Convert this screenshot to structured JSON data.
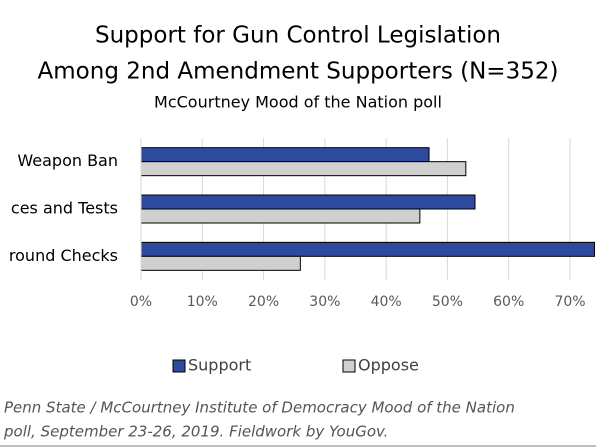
{
  "chart_data": {
    "type": "hbar",
    "title": [
      "Support for Gun Control Legislation",
      "Among 2nd Amendment Supporters (N=352)"
    ],
    "subtitle": "McCourtney Mood of the Nation poll",
    "categories": [
      "Weapon Ban",
      "ces and Tests",
      "round Checks"
    ],
    "series": [
      {
        "name": "Support",
        "color": "#2e4a9e",
        "values": [
          47,
          54.5,
          74
        ]
      },
      {
        "name": "Oppose",
        "color": "#d0d0d0",
        "values": [
          53,
          45.5,
          26
        ]
      }
    ],
    "xlim": [
      0,
      70
    ],
    "xticks": [
      {
        "value": 0,
        "label": "0%"
      },
      {
        "value": 10,
        "label": "10%"
      },
      {
        "value": 20,
        "label": "20%"
      },
      {
        "value": 30,
        "label": "30%"
      },
      {
        "value": 40,
        "label": "40%"
      },
      {
        "value": 50,
        "label": "50%"
      },
      {
        "value": 60,
        "label": "60%"
      },
      {
        "value": 70,
        "label": "70%"
      }
    ],
    "grid": true,
    "legend": "bottom",
    "footnote": [
      "Penn State / McCourtney Institute of Democracy Mood of the Nation",
      "poll, September 23-26, 2019.  Fieldwork by YouGov."
    ]
  }
}
